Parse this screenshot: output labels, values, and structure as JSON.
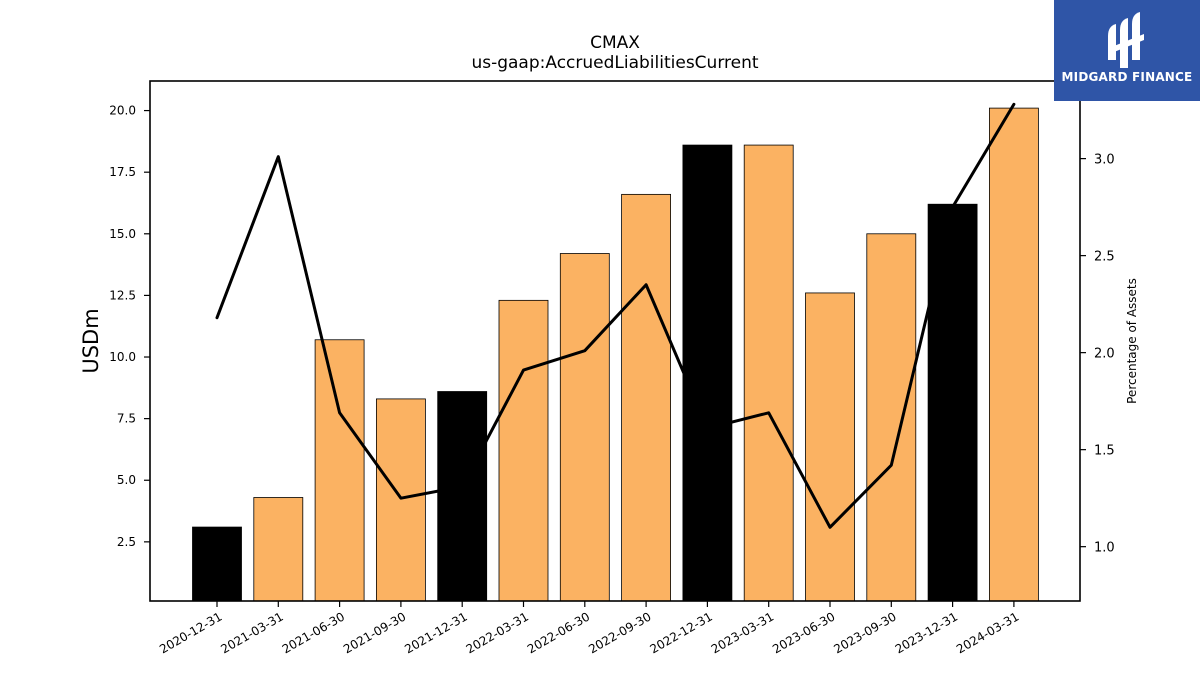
{
  "logo": {
    "text": "MIDGARD FINANCE",
    "color": "#2f55a7"
  },
  "chart_data": {
    "type": "bar",
    "title": "CMAX",
    "subtitle": "us-gaap:AccruedLiabilitiesCurrent",
    "ylabel": "USDm",
    "ylabel_right": "Percentage of Assets",
    "categories": [
      "2020-12-31",
      "2021-03-31",
      "2021-06-30",
      "2021-09-30",
      "2021-12-31",
      "2022-03-31",
      "2022-06-30",
      "2022-09-30",
      "2022-12-31",
      "2023-03-31",
      "2023-06-30",
      "2023-09-30",
      "2023-12-31",
      "2024-03-31"
    ],
    "series": [
      {
        "type": "bar",
        "axis": "left",
        "values": [
          3.1,
          4.3,
          10.7,
          8.3,
          8.6,
          12.3,
          14.2,
          16.6,
          18.6,
          18.6,
          12.6,
          15.0,
          16.2,
          20.1
        ],
        "colors": [
          "#000000",
          "#fbb262",
          "#fbb262",
          "#fbb262",
          "#000000",
          "#fbb262",
          "#fbb262",
          "#fbb262",
          "#000000",
          "#fbb262",
          "#fbb262",
          "#fbb262",
          "#000000",
          "#fbb262"
        ]
      },
      {
        "type": "line",
        "axis": "right",
        "color": "#000000",
        "values": [
          2.18,
          3.01,
          1.69,
          1.25,
          1.31,
          1.91,
          2.01,
          2.35,
          1.61,
          1.69,
          1.1,
          1.42,
          2.75,
          3.28
        ]
      }
    ],
    "ylim": [
      0.1,
      21.2
    ],
    "yticks": [
      2.5,
      5.0,
      7.5,
      10.0,
      12.5,
      15.0,
      17.5,
      20.0
    ],
    "ylim_right": [
      0.72,
      3.4
    ],
    "yticks_right": [
      1.0,
      1.5,
      2.0,
      2.5,
      3.0
    ],
    "grid": false
  }
}
